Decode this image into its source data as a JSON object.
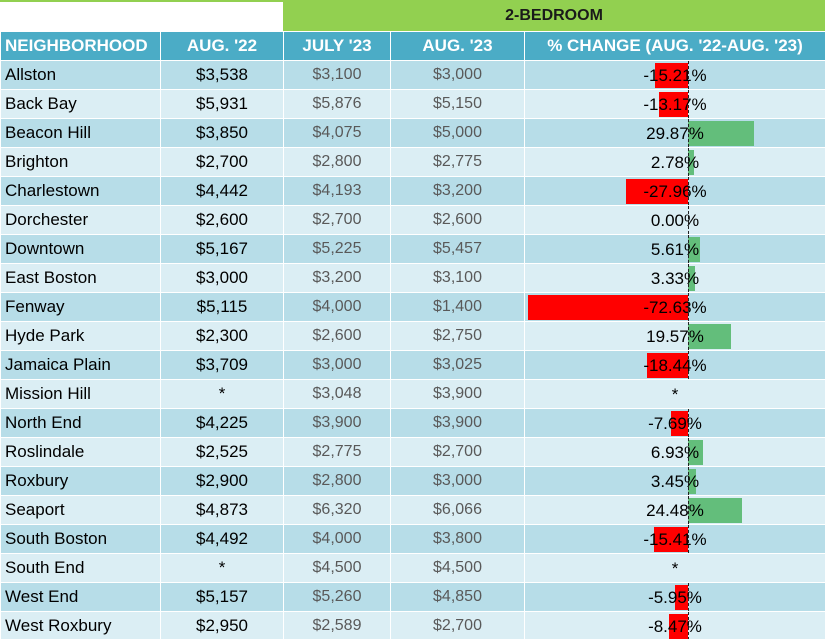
{
  "title": "2-BEDROOM",
  "headers": {
    "neighborhood": "NEIGHBORHOOD",
    "aug22": "AUG. '22",
    "jul23": "JULY '23",
    "aug23": "AUG. '23",
    "pct": "% CHANGE (AUG. '22-AUG. '23)"
  },
  "colors": {
    "title_bg": "#92d050",
    "header_bg": "#4bacc6",
    "row_dark": "#b7dde8",
    "row_light": "#dbeef4",
    "negative_bar": "#ff0000",
    "positive_bar": "#63be7b"
  },
  "rows": [
    {
      "name": "Allston",
      "aug22": "$3,538",
      "jul23": "$3,100",
      "aug23": "$3,000",
      "pct_text": "-15.21%",
      "pct": -15.21
    },
    {
      "name": "Back Bay",
      "aug22": "$5,931",
      "jul23": "$5,876",
      "aug23": "$5,150",
      "pct_text": "-13.17%",
      "pct": -13.17
    },
    {
      "name": "Beacon Hill",
      "aug22": "$3,850",
      "jul23": "$4,075",
      "aug23": "$5,000",
      "pct_text": "29.87%",
      "pct": 29.87
    },
    {
      "name": "Brighton",
      "aug22": "$2,700",
      "jul23": "$2,800",
      "aug23": "$2,775",
      "pct_text": "2.78%",
      "pct": 2.78
    },
    {
      "name": "Charlestown",
      "aug22": "$4,442",
      "jul23": "$4,193",
      "aug23": "$3,200",
      "pct_text": "-27.96%",
      "pct": -27.96
    },
    {
      "name": "Dorchester",
      "aug22": "$2,600",
      "jul23": "$2,700",
      "aug23": "$2,600",
      "pct_text": "0.00%",
      "pct": 0
    },
    {
      "name": "Downtown",
      "aug22": "$5,167",
      "jul23": "$5,225",
      "aug23": "$5,457",
      "pct_text": "5.61%",
      "pct": 5.61
    },
    {
      "name": "East Boston",
      "aug22": "$3,000",
      "jul23": "$3,200",
      "aug23": "$3,100",
      "pct_text": "3.33%",
      "pct": 3.33
    },
    {
      "name": "Fenway",
      "aug22": "$5,115",
      "jul23": "$4,000",
      "aug23": "$1,400",
      "pct_text": "-72.63%",
      "pct": -72.63
    },
    {
      "name": "Hyde Park",
      "aug22": "$2,300",
      "jul23": "$2,600",
      "aug23": "$2,750",
      "pct_text": "19.57%",
      "pct": 19.57
    },
    {
      "name": "Jamaica Plain",
      "aug22": "$3,709",
      "jul23": "$3,000",
      "aug23": "$3,025",
      "pct_text": "-18.44%",
      "pct": -18.44
    },
    {
      "name": "Mission Hill",
      "aug22": "*",
      "jul23": "$3,048",
      "aug23": "$3,900",
      "pct_text": "*",
      "pct": null
    },
    {
      "name": "North End",
      "aug22": "$4,225",
      "jul23": "$3,900",
      "aug23": "$3,900",
      "pct_text": "-7.69%",
      "pct": -7.69
    },
    {
      "name": "Roslindale",
      "aug22": "$2,525",
      "jul23": "$2,775",
      "aug23": "$2,700",
      "pct_text": "6.93%",
      "pct": 6.93
    },
    {
      "name": "Roxbury",
      "aug22": "$2,900",
      "jul23": "$2,800",
      "aug23": "$3,000",
      "pct_text": "3.45%",
      "pct": 3.45
    },
    {
      "name": "Seaport",
      "aug22": "$4,873",
      "jul23": "$6,320",
      "aug23": "$6,066",
      "pct_text": "24.48%",
      "pct": 24.48
    },
    {
      "name": "South Boston",
      "aug22": "$4,492",
      "jul23": "$4,000",
      "aug23": "$3,800",
      "pct_text": "-15.41%",
      "pct": -15.41
    },
    {
      "name": "South End",
      "aug22": "*",
      "jul23": "$4,500",
      "aug23": "$4,500",
      "pct_text": "*",
      "pct": null
    },
    {
      "name": "West End",
      "aug22": "$5,157",
      "jul23": "$5,260",
      "aug23": "$4,850",
      "pct_text": "-5.95%",
      "pct": -5.95
    },
    {
      "name": "West Roxbury",
      "aug22": "$2,950",
      "jul23": "$2,589",
      "aug23": "$2,700",
      "pct_text": "-8.47%",
      "pct": -8.47
    }
  ]
}
